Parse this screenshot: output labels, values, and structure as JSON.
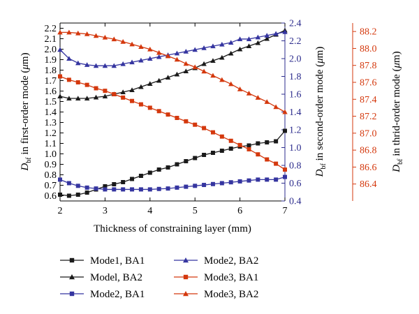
{
  "chart_data": {
    "type": "line",
    "xlabel": "Thickness of constraining layer (mm)",
    "x_ticks": [
      2,
      3,
      4,
      5,
      6,
      7
    ],
    "xlim": [
      2,
      7
    ],
    "y_axes": [
      {
        "id": "y1",
        "label": "D_bf in first-order mode (μm)",
        "label_main": "D",
        "label_sub": "bf",
        "label_rest": " in first-order mode (",
        "label_mu": "μ",
        "label_end": "m)",
        "ylim": [
          0.55,
          2.25
        ],
        "ticks": [
          "0.6",
          "0.7",
          "0.8",
          "0.9",
          "1.0",
          "1.1",
          "1.2",
          "1.3",
          "1.4",
          "1.5",
          "1.6",
          "1.7",
          "1.8",
          "1.9",
          "2.0",
          "2.1",
          "2.2"
        ],
        "color": "#000000"
      },
      {
        "id": "y2",
        "label": "D_bf in second-order mode (μm)",
        "label_main": "D",
        "label_sub": "bf",
        "label_rest": " in second-order mode (",
        "label_mu": "μ",
        "label_end": "m)",
        "ylim": [
          0.4,
          2.4
        ],
        "ticks": [
          "0.4",
          "0.6",
          "0.8",
          "1.0",
          "1.2",
          "1.4",
          "1.6",
          "1.8",
          "2.0",
          "2.2",
          "2.4"
        ],
        "color": "#2b2b8c"
      },
      {
        "id": "y3",
        "label": "D_bf in thrid-order mode (μm)",
        "label_main": "D",
        "label_sub": "bf",
        "label_rest": " in thrid-order mode (",
        "label_mu": "μ",
        "label_end": "m)",
        "ylim": [
          86.2,
          88.3
        ],
        "ticks": [
          "86.4",
          "86.6",
          "86.8",
          "87.0",
          "87.2",
          "87.4",
          "87.6",
          "87.8",
          "88.0",
          "88.2"
        ],
        "color": "#d4380d"
      }
    ],
    "series": [
      {
        "name": "Mode1, BA1",
        "axis": "y1",
        "marker": "square",
        "color": "#1a1a1a",
        "x": [
          2.0,
          2.2,
          2.4,
          2.6,
          2.8,
          3.0,
          3.2,
          3.4,
          3.6,
          3.8,
          4.0,
          4.2,
          4.4,
          4.6,
          4.8,
          5.0,
          5.2,
          5.4,
          5.6,
          5.8,
          6.0,
          6.2,
          6.4,
          6.6,
          6.8,
          7.0
        ],
        "y": [
          0.61,
          0.6,
          0.61,
          0.63,
          0.66,
          0.69,
          0.71,
          0.73,
          0.76,
          0.79,
          0.82,
          0.85,
          0.87,
          0.9,
          0.93,
          0.96,
          0.99,
          1.01,
          1.03,
          1.05,
          1.07,
          1.08,
          1.1,
          1.11,
          1.12,
          1.22
        ]
      },
      {
        "name": "Model, BA2",
        "axis": "y1",
        "marker": "triangle",
        "color": "#1a1a1a",
        "x": [
          2.0,
          2.2,
          2.4,
          2.6,
          2.8,
          3.0,
          3.2,
          3.4,
          3.6,
          3.8,
          4.0,
          4.2,
          4.4,
          4.6,
          4.8,
          5.0,
          5.2,
          5.4,
          5.6,
          5.8,
          6.0,
          6.2,
          6.4,
          6.6,
          6.8,
          7.0
        ],
        "y": [
          1.55,
          1.53,
          1.53,
          1.53,
          1.54,
          1.55,
          1.57,
          1.59,
          1.61,
          1.64,
          1.67,
          1.7,
          1.73,
          1.76,
          1.79,
          1.82,
          1.86,
          1.89,
          1.92,
          1.96,
          2.0,
          2.03,
          2.06,
          2.1,
          2.14,
          2.18
        ]
      },
      {
        "name": "Mode2, BA1",
        "axis": "y2",
        "marker": "square",
        "color": "#3535a0",
        "x": [
          2.0,
          2.2,
          2.4,
          2.6,
          2.8,
          3.0,
          3.2,
          3.4,
          3.6,
          3.8,
          4.0,
          4.2,
          4.4,
          4.6,
          4.8,
          5.0,
          5.2,
          5.4,
          5.6,
          5.8,
          6.0,
          6.2,
          6.4,
          6.6,
          6.8,
          7.0
        ],
        "y": [
          0.64,
          0.6,
          0.57,
          0.55,
          0.54,
          0.53,
          0.53,
          0.53,
          0.53,
          0.53,
          0.53,
          0.535,
          0.54,
          0.55,
          0.56,
          0.57,
          0.58,
          0.59,
          0.6,
          0.61,
          0.62,
          0.63,
          0.64,
          0.64,
          0.64,
          0.67
        ]
      },
      {
        "name": "Mode2, BA2",
        "axis": "y2",
        "marker": "triangle",
        "color": "#3535a0",
        "x": [
          2.0,
          2.2,
          2.4,
          2.6,
          2.8,
          3.0,
          3.2,
          3.4,
          3.6,
          3.8,
          4.0,
          4.2,
          4.4,
          4.6,
          4.8,
          5.0,
          5.2,
          5.4,
          5.6,
          5.8,
          6.0,
          6.2,
          6.4,
          6.6,
          6.8,
          7.0
        ],
        "y": [
          2.1,
          2.0,
          1.95,
          1.93,
          1.92,
          1.92,
          1.92,
          1.94,
          1.96,
          1.98,
          2.0,
          2.02,
          2.04,
          2.06,
          2.08,
          2.1,
          2.12,
          2.14,
          2.16,
          2.18,
          2.22,
          2.22,
          2.24,
          2.26,
          2.28,
          2.3
        ]
      },
      {
        "name": "Mode3, BA1",
        "axis": "y3",
        "marker": "square",
        "color": "#d4380d",
        "x": [
          2.0,
          2.2,
          2.4,
          2.6,
          2.8,
          3.0,
          3.2,
          3.4,
          3.6,
          3.8,
          4.0,
          4.2,
          4.4,
          4.6,
          4.8,
          5.0,
          5.2,
          5.4,
          5.6,
          5.8,
          6.0,
          6.2,
          6.4,
          6.6,
          6.8,
          7.0
        ],
        "y": [
          87.67,
          87.63,
          87.6,
          87.57,
          87.53,
          87.5,
          87.46,
          87.42,
          87.38,
          87.34,
          87.3,
          87.26,
          87.22,
          87.18,
          87.14,
          87.1,
          87.06,
          87.01,
          86.96,
          86.91,
          86.86,
          86.81,
          86.75,
          86.69,
          86.64,
          86.57
        ]
      },
      {
        "name": "Mode3, BA2",
        "axis": "y3",
        "marker": "triangle",
        "color": "#d4380d",
        "x": [
          2.0,
          2.2,
          2.4,
          2.6,
          2.8,
          3.0,
          3.2,
          3.4,
          3.6,
          3.8,
          4.0,
          4.2,
          4.4,
          4.6,
          4.8,
          5.0,
          5.2,
          5.4,
          5.6,
          5.8,
          6.0,
          6.2,
          6.4,
          6.6,
          6.8,
          7.0
        ],
        "y": [
          88.19,
          88.19,
          88.18,
          88.17,
          88.15,
          88.13,
          88.11,
          88.08,
          88.05,
          88.02,
          87.99,
          87.95,
          87.91,
          87.87,
          87.82,
          87.78,
          87.73,
          87.68,
          87.63,
          87.58,
          87.52,
          87.47,
          87.42,
          87.37,
          87.31,
          87.25
        ]
      }
    ],
    "legend": {
      "placement": "bottom",
      "entries": [
        "Mode1, BA1",
        "Model, BA2",
        "Mode2, BA1",
        "Mode2, BA2",
        "Mode3, BA1",
        "Mode3, BA2"
      ]
    }
  }
}
